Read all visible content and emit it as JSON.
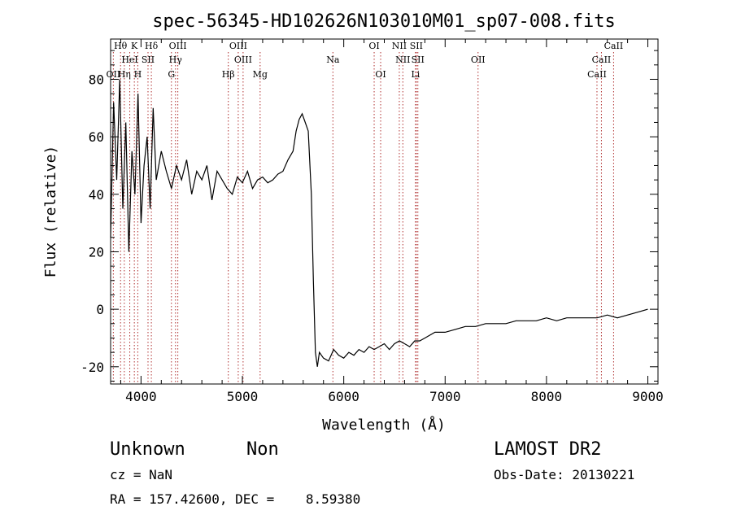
{
  "chart_data": {
    "type": "line",
    "title": "spec-56345-HD102626N103010M01_sp07-008.fits",
    "xlabel": "Wavelength (Å)",
    "ylabel": "Flux (relative)",
    "xlim": [
      3700,
      9100
    ],
    "ylim": [
      -26,
      94
    ],
    "xticks": [
      "4000",
      "5000",
      "6000",
      "7000",
      "8000",
      "9000"
    ],
    "yticks": [
      "-20",
      "0",
      "20",
      "40",
      "60",
      "80"
    ],
    "grid": false,
    "series": [
      {
        "x": [
          3700,
          3730,
          3760,
          3790,
          3820,
          3850,
          3880,
          3910,
          3940,
          3970,
          4000,
          4030,
          4060,
          4090,
          4120,
          4150,
          4200,
          4250,
          4300,
          4350,
          4400,
          4450,
          4500,
          4550,
          4600,
          4650,
          4700,
          4750,
          4800,
          4850,
          4900,
          4950,
          5000,
          5050,
          5100,
          5150,
          5200,
          5250,
          5300,
          5350,
          5400,
          5450,
          5500,
          5530,
          5560,
          5590,
          5620,
          5650,
          5680,
          5700,
          5720,
          5740,
          5760,
          5800,
          5850,
          5900,
          5950,
          6000,
          6050,
          6100,
          6150,
          6200,
          6250,
          6300,
          6350,
          6400,
          6450,
          6500,
          6550,
          6600,
          6650,
          6700,
          6750,
          6800,
          6900,
          7000,
          7100,
          7200,
          7300,
          7400,
          7500,
          7600,
          7700,
          7800,
          7900,
          8000,
          8100,
          8200,
          8300,
          8400,
          8500,
          8600,
          8700,
          8800,
          8900,
          9000
        ],
        "y": [
          25,
          72,
          45,
          80,
          35,
          65,
          20,
          55,
          40,
          75,
          30,
          50,
          60,
          35,
          70,
          45,
          55,
          48,
          42,
          50,
          45,
          52,
          40,
          48,
          45,
          50,
          38,
          48,
          45,
          42,
          40,
          46,
          44,
          48,
          42,
          45,
          46,
          44,
          45,
          47,
          48,
          52,
          55,
          62,
          66,
          68,
          65,
          62,
          40,
          10,
          -15,
          -20,
          -15,
          -17,
          -18,
          -14,
          -16,
          -17,
          -15,
          -16,
          -14,
          -15,
          -13,
          -14,
          -13,
          -12,
          -14,
          -12,
          -11,
          -12,
          -13,
          -11,
          -11,
          -10,
          -8,
          -8,
          -7,
          -6,
          -6,
          -5,
          -5,
          -5,
          -4,
          -4,
          -4,
          -3,
          -4,
          -3,
          -3,
          -3,
          -3,
          -2,
          -3,
          -2,
          -1,
          0
        ]
      }
    ],
    "spectral_lines": [
      {
        "label": "Hθ",
        "x": 3798,
        "row": 0
      },
      {
        "label": "K",
        "x": 3934,
        "row": 0
      },
      {
        "label": "Hδ",
        "x": 4102,
        "row": 0
      },
      {
        "label": "OIII",
        "x": 4363,
        "row": 0
      },
      {
        "label": "OIII",
        "x": 4959,
        "row": 0
      },
      {
        "label": "OI",
        "x": 6300,
        "row": 0
      },
      {
        "label": "NII",
        "x": 6548,
        "row": 0
      },
      {
        "label": "SII",
        "x": 6716,
        "row": 0
      },
      {
        "label": "CaII",
        "x": 8662,
        "row": 0
      },
      {
        "label": "HeI",
        "x": 3889,
        "row": 1
      },
      {
        "label": "SII",
        "x": 4069,
        "row": 1
      },
      {
        "label": "Hγ",
        "x": 4340,
        "row": 1
      },
      {
        "label": "OIII",
        "x": 5007,
        "row": 1
      },
      {
        "label": "Na",
        "x": 5893,
        "row": 1
      },
      {
        "label": "NII",
        "x": 6583,
        "row": 1
      },
      {
        "label": "SII",
        "x": 6731,
        "row": 1
      },
      {
        "label": "OII",
        "x": 7325,
        "row": 1
      },
      {
        "label": "CaII",
        "x": 8542,
        "row": 1
      },
      {
        "label": "OII",
        "x": 3727,
        "row": 2
      },
      {
        "label": "Hη",
        "x": 3835,
        "row": 2
      },
      {
        "label": "H",
        "x": 3968,
        "row": 2
      },
      {
        "label": "G",
        "x": 4300,
        "row": 2
      },
      {
        "label": "Hβ",
        "x": 4861,
        "row": 2
      },
      {
        "label": "Mg",
        "x": 5175,
        "row": 2
      },
      {
        "label": "OI",
        "x": 6364,
        "row": 2
      },
      {
        "label": "Li",
        "x": 6708,
        "row": 2
      },
      {
        "label": "CaII",
        "x": 8498,
        "row": 2
      }
    ]
  },
  "info": {
    "object_class": "Unknown",
    "subclass": "Non",
    "survey": "LAMOST DR2",
    "cz": "cz = NaN",
    "obs_date": "Obs-Date: 20130221",
    "radec": "RA = 157.42600, DEC =    8.59380"
  }
}
